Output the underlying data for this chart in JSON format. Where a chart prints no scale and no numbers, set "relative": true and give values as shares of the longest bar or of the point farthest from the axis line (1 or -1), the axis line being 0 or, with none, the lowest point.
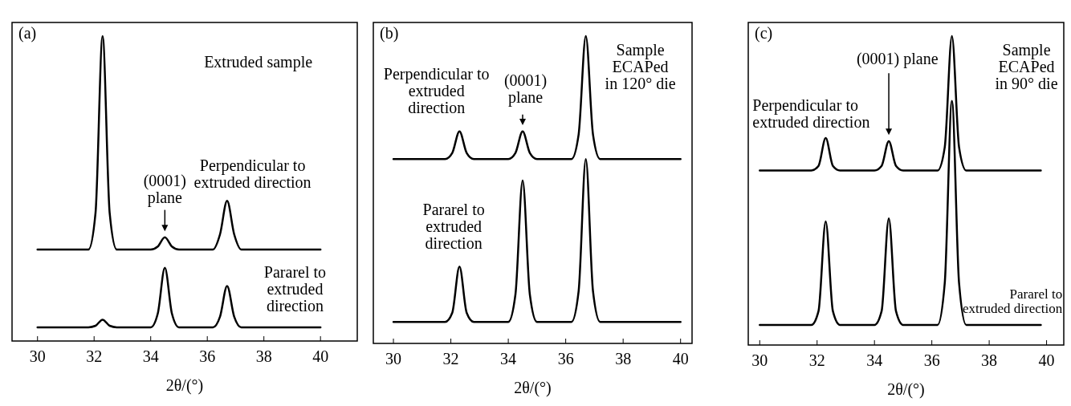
{
  "chart_data": [
    {
      "type": "line",
      "title": "(a)",
      "xlabel": "2θ/(°)",
      "relative": true,
      "xlim": [
        29.1,
        41.3
      ],
      "xticks": [
        30,
        32,
        34,
        36,
        38,
        40
      ],
      "x": [
        30,
        31.8,
        32.05,
        32.3,
        32.55,
        32.8,
        34.0,
        34.25,
        34.5,
        34.75,
        35.0,
        36.2,
        36.45,
        36.7,
        36.95,
        37.2,
        40
      ],
      "annotations": [
        "Extruded sample",
        "(0001)\nplane"
      ],
      "series": [
        {
          "name": "Perpendicular to\nextruded direction",
          "color": "#000000",
          "values": [
            0.3,
            0.3,
            0.42,
            1.0,
            0.42,
            0.3,
            0.3,
            0.31,
            0.34,
            0.31,
            0.3,
            0.3,
            0.35,
            0.46,
            0.35,
            0.3,
            0.3
          ]
        },
        {
          "name": "Pararel to\nextruded\ndirection",
          "color": "#000000",
          "values": [
            0.045,
            0.045,
            0.05,
            0.07,
            0.05,
            0.045,
            0.045,
            0.09,
            0.24,
            0.09,
            0.045,
            0.045,
            0.08,
            0.18,
            0.08,
            0.045,
            0.045
          ]
        }
      ]
    },
    {
      "type": "line",
      "title": "(b)",
      "xlabel": "2θ/(°)",
      "relative": true,
      "xlim": [
        29.3,
        40.4
      ],
      "xticks": [
        30,
        32,
        34,
        36,
        38,
        40
      ],
      "x": [
        30,
        31.8,
        32.05,
        32.3,
        32.55,
        32.8,
        34.0,
        34.25,
        34.5,
        34.75,
        35.0,
        36.2,
        36.45,
        36.7,
        36.95,
        37.2,
        40
      ],
      "annotations": [
        "Sample\nECAPed\nin 120° die",
        "(0001)\nplane"
      ],
      "series": [
        {
          "name": "Perpendicular to\nextruded\ndirection",
          "color": "#000000",
          "values": [
            0.6,
            0.6,
            0.62,
            0.69,
            0.62,
            0.6,
            0.6,
            0.62,
            0.69,
            0.62,
            0.6,
            0.6,
            0.68,
            1.0,
            0.68,
            0.6,
            0.6
          ]
        },
        {
          "name": "Pararel to\nextruded\ndirection",
          "color": "#000000",
          "values": [
            0.07,
            0.07,
            0.1,
            0.25,
            0.1,
            0.07,
            0.07,
            0.16,
            0.53,
            0.16,
            0.07,
            0.07,
            0.17,
            0.6,
            0.17,
            0.07,
            0.07
          ]
        }
      ]
    },
    {
      "type": "line",
      "title": "(c)",
      "xlabel": "2θ/(°)",
      "relative": true,
      "xlim": [
        29.6,
        40.6
      ],
      "xticks": [
        30,
        32,
        34,
        36,
        38,
        40
      ],
      "x": [
        30,
        31.8,
        32.05,
        32.3,
        32.55,
        32.8,
        34.0,
        34.25,
        34.5,
        34.75,
        35.0,
        36.2,
        36.45,
        36.7,
        36.95,
        37.2,
        39.8
      ],
      "annotations": [
        "Sample\nECAPed\nin 90° die",
        "(0001) plane"
      ],
      "series": [
        {
          "name": "Perpendicular to\nextruded direction",
          "color": "#000000",
          "values": [
            0.565,
            0.565,
            0.58,
            0.67,
            0.58,
            0.565,
            0.565,
            0.58,
            0.66,
            0.58,
            0.565,
            0.565,
            0.64,
            1.0,
            0.64,
            0.565,
            0.565
          ]
        },
        {
          "name": "Pararel to\nextruded direction",
          "color": "#000000",
          "values": [
            0.065,
            0.065,
            0.11,
            0.4,
            0.11,
            0.065,
            0.065,
            0.11,
            0.41,
            0.11,
            0.065,
            0.065,
            0.2,
            0.79,
            0.2,
            0.065,
            0.065
          ]
        }
      ]
    }
  ]
}
